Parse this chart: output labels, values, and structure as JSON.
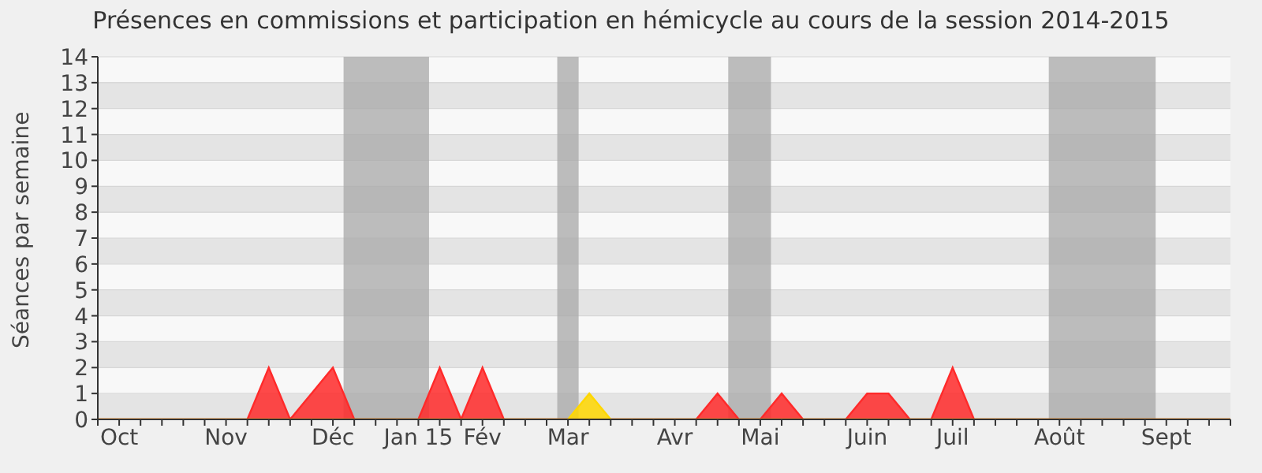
{
  "chart_data": {
    "type": "area",
    "title": "Présences en commissions et participation en hémicycle au cours de la session 2014-2015",
    "ylabel": "Séances par semaine",
    "categories": [
      null,
      "Oct",
      null,
      null,
      null,
      null,
      "Nov",
      null,
      null,
      null,
      null,
      "Déc",
      null,
      null,
      null,
      "Jan 15",
      null,
      null,
      "Fév",
      null,
      null,
      null,
      "Mar",
      null,
      null,
      null,
      null,
      "Avr",
      null,
      null,
      null,
      "Mai",
      null,
      null,
      null,
      null,
      "Juin",
      null,
      null,
      null,
      "Juil",
      null,
      null,
      null,
      null,
      "Août",
      null,
      null,
      null,
      null,
      "Sept",
      null,
      null,
      null
    ],
    "series": [
      {
        "color": "#ff2a2a",
        "values": [
          0,
          0,
          0,
          0,
          0,
          0,
          0,
          0,
          2,
          0,
          1,
          2,
          0,
          0,
          0,
          0,
          2,
          0,
          2,
          0,
          0,
          0,
          0,
          0,
          0,
          0,
          0,
          0,
          0,
          1,
          0,
          0,
          1,
          0,
          0,
          0,
          1,
          1,
          0,
          0,
          2,
          0,
          0,
          0,
          0,
          0,
          0,
          0,
          0,
          0,
          0,
          0,
          0,
          0
        ]
      },
      {
        "color": "#ffd700",
        "values": [
          0,
          0,
          0,
          0,
          0,
          0,
          0,
          0,
          0,
          0,
          0,
          0,
          0,
          0,
          0,
          0,
          0,
          0,
          0,
          0,
          0,
          0,
          0,
          1,
          0,
          0,
          0,
          0,
          0,
          0,
          0,
          0,
          0,
          0,
          0,
          0,
          0,
          0,
          0,
          0,
          0,
          0,
          0,
          0,
          0,
          0,
          0,
          0,
          0,
          0,
          0,
          0,
          0,
          0
        ]
      }
    ],
    "ylim": [
      0,
      14
    ],
    "yticks": [
      0,
      1,
      2,
      3,
      4,
      5,
      6,
      7,
      8,
      9,
      10,
      11,
      12,
      13,
      14
    ],
    "grid": "y"
  }
}
